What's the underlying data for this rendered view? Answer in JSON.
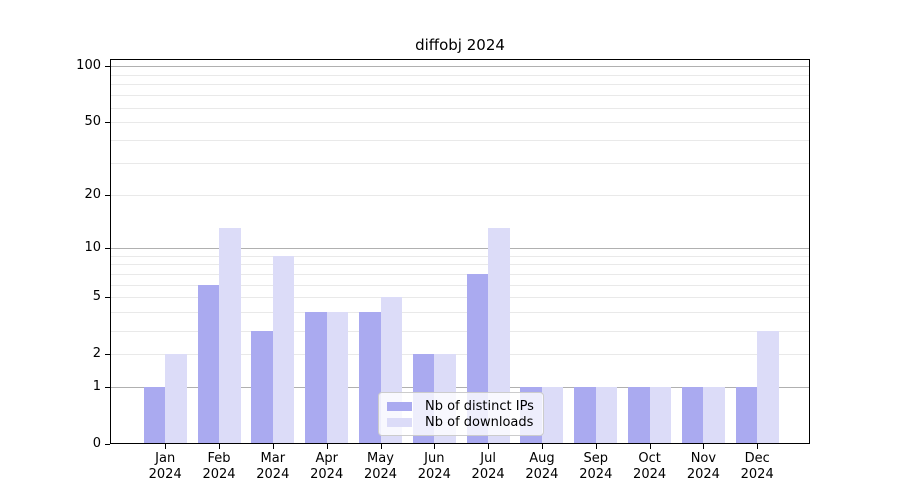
{
  "chart_data": {
    "type": "bar",
    "title": "diffobj 2024",
    "categories": [
      "Jan",
      "Feb",
      "Mar",
      "Apr",
      "May",
      "Jun",
      "Jul",
      "Aug",
      "Sep",
      "Oct",
      "Nov",
      "Dec"
    ],
    "category_year": "2024",
    "series": [
      {
        "name": "Nb of distinct IPs",
        "color": "#aaaaf0",
        "values": [
          1,
          6,
          3,
          4,
          4,
          2,
          7,
          1,
          1,
          1,
          1,
          1
        ]
      },
      {
        "name": "Nb of downloads",
        "color": "#dcdcf8",
        "values": [
          2,
          13,
          9,
          4,
          5,
          2,
          13,
          1,
          1,
          1,
          1,
          3
        ]
      }
    ],
    "y_axis": {
      "scale": "log1p",
      "tick_labels": [
        100,
        50,
        20,
        10,
        5,
        2,
        1,
        0
      ],
      "range_min": 0,
      "range_max": 110
    },
    "grid": {
      "on": true,
      "major_values": [
        1,
        10,
        100
      ],
      "minor_values": [
        2,
        3,
        4,
        5,
        6,
        7,
        8,
        9,
        20,
        30,
        40,
        50,
        60,
        70,
        80,
        90
      ],
      "major_color": "#b0b0b0",
      "minor_color": "#e9e9e9"
    },
    "legend": {
      "entries": [
        "Nb of distinct IPs",
        "Nb of downloads"
      ],
      "position": "lower-center"
    },
    "colors": {
      "distinct_ips": "#aaaaf0",
      "downloads": "#dcdcf8",
      "axis": "#000000",
      "background": "#ffffff"
    }
  }
}
